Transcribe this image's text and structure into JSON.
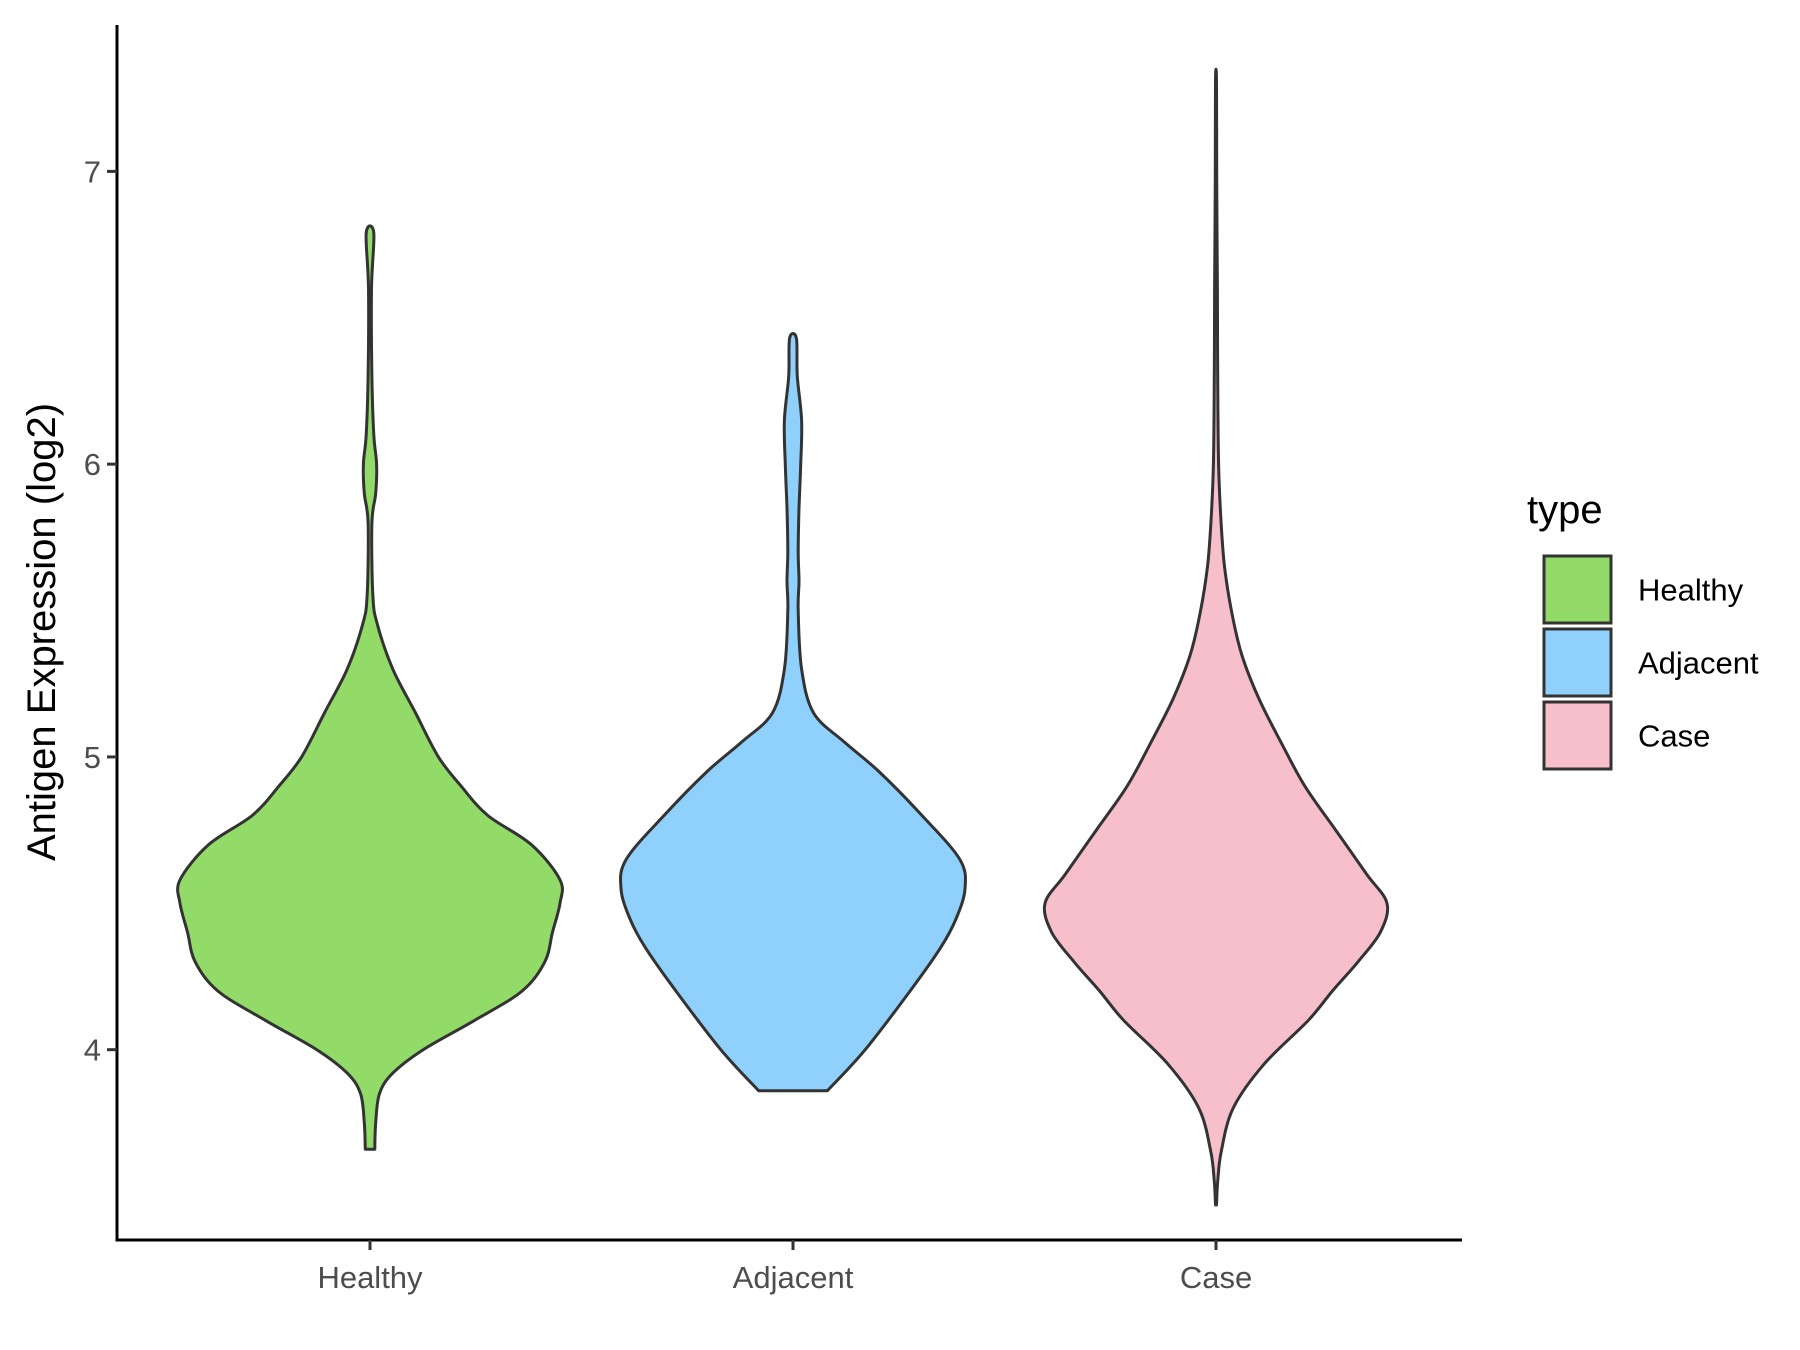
{
  "chart_data": {
    "type": "violin",
    "ylabel": "Antigen Expression (log2)",
    "xlabel": "",
    "ylim": [
      3.35,
      7.5
    ],
    "yticks": [
      4,
      5,
      6,
      7
    ],
    "grid": false,
    "legend": {
      "title": "type",
      "placement": "right",
      "entries": [
        "Healthy",
        "Adjacent",
        "Case"
      ]
    },
    "categories": [
      "Healthy",
      "Adjacent",
      "Case"
    ],
    "series": [
      {
        "name": "Healthy",
        "color": "#93db69",
        "min": 3.66,
        "max": 6.79,
        "density": [
          [
            3.66,
            0.025
          ],
          [
            3.75,
            0.03
          ],
          [
            3.85,
            0.05
          ],
          [
            3.92,
            0.12
          ],
          [
            4.0,
            0.28
          ],
          [
            4.1,
            0.55
          ],
          [
            4.2,
            0.8
          ],
          [
            4.3,
            0.92
          ],
          [
            4.4,
            0.96
          ],
          [
            4.5,
            1.0
          ],
          [
            4.58,
            1.0
          ],
          [
            4.7,
            0.85
          ],
          [
            4.8,
            0.62
          ],
          [
            4.9,
            0.48
          ],
          [
            5.0,
            0.36
          ],
          [
            5.15,
            0.24
          ],
          [
            5.3,
            0.12
          ],
          [
            5.45,
            0.04
          ],
          [
            5.55,
            0.015
          ],
          [
            5.8,
            0.01
          ],
          [
            5.9,
            0.03
          ],
          [
            6.0,
            0.035
          ],
          [
            6.1,
            0.02
          ],
          [
            6.3,
            0.01
          ],
          [
            6.6,
            0.008
          ],
          [
            6.79,
            0.02
          ]
        ]
      },
      {
        "name": "Adjacent",
        "color": "#8fd1fc",
        "min": 3.86,
        "max": 6.43,
        "density": [
          [
            3.86,
            0.2
          ],
          [
            4.0,
            0.42
          ],
          [
            4.2,
            0.68
          ],
          [
            4.35,
            0.86
          ],
          [
            4.45,
            0.95
          ],
          [
            4.55,
            1.0
          ],
          [
            4.65,
            0.97
          ],
          [
            4.8,
            0.75
          ],
          [
            4.95,
            0.5
          ],
          [
            5.05,
            0.3
          ],
          [
            5.15,
            0.12
          ],
          [
            5.3,
            0.05
          ],
          [
            5.5,
            0.03
          ],
          [
            5.6,
            0.035
          ],
          [
            5.7,
            0.03
          ],
          [
            5.85,
            0.035
          ],
          [
            6.0,
            0.045
          ],
          [
            6.15,
            0.05
          ],
          [
            6.3,
            0.025
          ],
          [
            6.43,
            0.02
          ]
        ]
      },
      {
        "name": "Case",
        "color": "#f7bfcb",
        "min": 3.47,
        "max": 7.31,
        "density": [
          [
            3.47,
            0.003
          ],
          [
            3.55,
            0.01
          ],
          [
            3.65,
            0.03
          ],
          [
            3.8,
            0.1
          ],
          [
            3.95,
            0.28
          ],
          [
            4.1,
            0.54
          ],
          [
            4.2,
            0.68
          ],
          [
            4.3,
            0.83
          ],
          [
            4.4,
            0.96
          ],
          [
            4.5,
            1.0
          ],
          [
            4.6,
            0.88
          ],
          [
            4.75,
            0.7
          ],
          [
            4.9,
            0.52
          ],
          [
            5.05,
            0.38
          ],
          [
            5.2,
            0.25
          ],
          [
            5.35,
            0.15
          ],
          [
            5.5,
            0.09
          ],
          [
            5.65,
            0.05
          ],
          [
            5.8,
            0.03
          ],
          [
            6.0,
            0.015
          ],
          [
            6.3,
            0.01
          ],
          [
            6.6,
            0.008
          ],
          [
            6.8,
            0.006
          ],
          [
            7.0,
            0.004
          ],
          [
            7.31,
            0.003
          ]
        ]
      }
    ]
  }
}
